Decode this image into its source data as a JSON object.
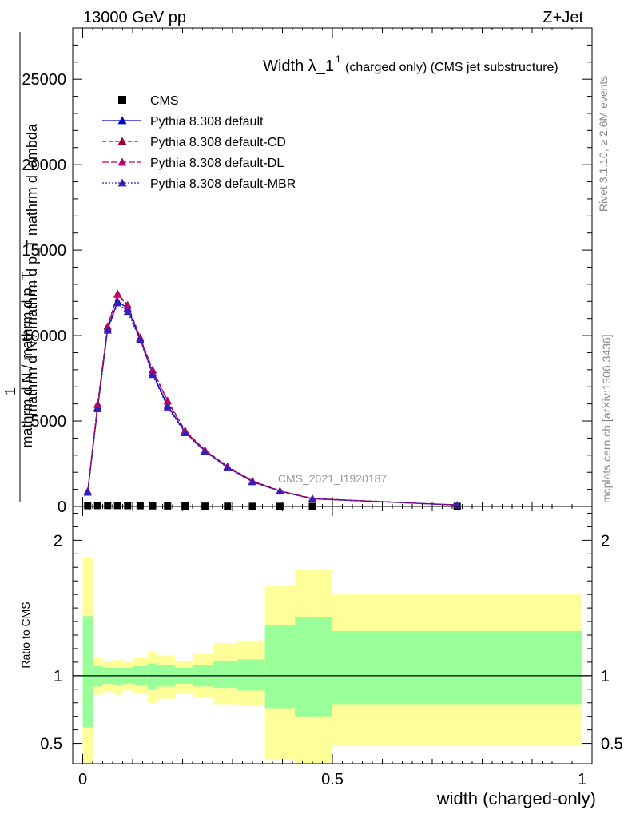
{
  "header": {
    "energy_label": "13000 GeV pp",
    "process_label": "Z+Jet"
  },
  "side_labels": {
    "rivet": "Rivet 3.1.10, ≥ 2.6M events",
    "mcplots": "mcplots.cern.ch [arXiv:1306.3436]"
  },
  "colors": {
    "cms": "#000000",
    "default": "#0000cc",
    "default_cd": "#a0003a",
    "default_dl": "#c0006a",
    "default_mbr": "#3020c0",
    "band_inner": "#99ff99",
    "band_outer": "#ffff99"
  },
  "chart_data": [
    {
      "type": "line",
      "title_main": "Width λ_1",
      "title_sup": "1",
      "title_rest": "(charged only) (CMS jet substructure)",
      "ylabel_lines": [
        "mathrm d N / mathrm d p_T mathrm d lambda",
        "mathrm d N / mathrm d p_T",
        "1"
      ],
      "watermark": "CMS_2021_I1920187",
      "xlim": [
        -0.02,
        1.02
      ],
      "ylim": [
        0,
        28000
      ],
      "yticks": [
        0,
        5000,
        10000,
        15000,
        20000,
        25000
      ],
      "ytick_labels": [
        "0",
        "5000",
        "10000",
        "15000",
        "20000",
        "25000"
      ],
      "legend_position": "top-left",
      "series": [
        {
          "name": "CMS",
          "style": "markers",
          "x": [
            0.01,
            0.03,
            0.05,
            0.07,
            0.09,
            0.115,
            0.14,
            0.17,
            0.205,
            0.245,
            0.29,
            0.34,
            0.395,
            0.46,
            0.75
          ],
          "y": [
            45,
            50,
            55,
            52,
            48,
            42,
            36,
            30,
            22,
            16,
            11,
            7,
            5,
            3,
            1
          ]
        },
        {
          "name": "Pythia 8.308 default",
          "style": "solid",
          "x": [
            0.01,
            0.03,
            0.05,
            0.07,
            0.09,
            0.115,
            0.14,
            0.17,
            0.205,
            0.245,
            0.29,
            0.34,
            0.395,
            0.46,
            0.75
          ],
          "y": [
            850,
            5800,
            10400,
            12000,
            11600,
            9800,
            7800,
            5900,
            4350,
            3250,
            2300,
            1450,
            900,
            450,
            80
          ]
        },
        {
          "name": "Pythia 8.308 default-CD",
          "style": "dashed",
          "x": [
            0.01,
            0.03,
            0.05,
            0.07,
            0.09,
            0.115,
            0.14,
            0.17,
            0.205,
            0.245,
            0.29,
            0.34,
            0.395,
            0.46,
            0.75
          ],
          "y": [
            900,
            6000,
            10550,
            12450,
            11800,
            9900,
            8000,
            6200,
            4450,
            3300,
            2350,
            1500,
            920,
            470,
            85
          ]
        },
        {
          "name": "Pythia 8.308 default-DL",
          "style": "dashed",
          "x": [
            0.01,
            0.03,
            0.05,
            0.07,
            0.09,
            0.115,
            0.14,
            0.17,
            0.205,
            0.245,
            0.29,
            0.34,
            0.395,
            0.46,
            0.75
          ],
          "y": [
            880,
            5950,
            10500,
            12400,
            11750,
            9850,
            7950,
            6150,
            4400,
            3280,
            2330,
            1480,
            910,
            460,
            82
          ]
        },
        {
          "name": "Pythia 8.308 default-MBR",
          "style": "dotted",
          "x": [
            0.01,
            0.03,
            0.05,
            0.07,
            0.09,
            0.115,
            0.14,
            0.17,
            0.205,
            0.245,
            0.29,
            0.34,
            0.395,
            0.46,
            0.75
          ],
          "y": [
            820,
            5700,
            10300,
            11900,
            11400,
            9750,
            7700,
            5800,
            4300,
            3200,
            2280,
            1430,
            880,
            440,
            78
          ]
        }
      ]
    },
    {
      "type": "area",
      "ylabel": "Ratio to CMS",
      "xlabel": "width (charged-only)",
      "xlim": [
        -0.02,
        1.02
      ],
      "ylim": [
        0.35,
        2.25
      ],
      "xticks": [
        0,
        0.5,
        1
      ],
      "xtick_labels": [
        "0",
        "0.5",
        "1"
      ],
      "yticks": [
        0.5,
        1,
        2
      ],
      "ytick_labels": [
        "0.5",
        "1",
        "2"
      ],
      "reference_line": 1,
      "bins": [
        {
          "x0": 0.0,
          "x1": 0.02,
          "inner": [
            0.62,
            1.44
          ],
          "outer": [
            0.35,
            1.87
          ]
        },
        {
          "x0": 0.02,
          "x1": 0.04,
          "inner": [
            0.92,
            1.07
          ],
          "outer": [
            0.86,
            1.13
          ]
        },
        {
          "x0": 0.04,
          "x1": 0.06,
          "inner": [
            0.94,
            1.06
          ],
          "outer": [
            0.88,
            1.11
          ]
        },
        {
          "x0": 0.06,
          "x1": 0.08,
          "inner": [
            0.93,
            1.06
          ],
          "outer": [
            0.86,
            1.12
          ]
        },
        {
          "x0": 0.08,
          "x1": 0.1,
          "inner": [
            0.94,
            1.06
          ],
          "outer": [
            0.89,
            1.11
          ]
        },
        {
          "x0": 0.1,
          "x1": 0.13,
          "inner": [
            0.93,
            1.07
          ],
          "outer": [
            0.87,
            1.13
          ]
        },
        {
          "x0": 0.13,
          "x1": 0.15,
          "inner": [
            0.9,
            1.09
          ],
          "outer": [
            0.8,
            1.18
          ]
        },
        {
          "x0": 0.15,
          "x1": 0.185,
          "inner": [
            0.92,
            1.08
          ],
          "outer": [
            0.83,
            1.15
          ]
        },
        {
          "x0": 0.185,
          "x1": 0.22,
          "inner": [
            0.94,
            1.06
          ],
          "outer": [
            0.87,
            1.11
          ]
        },
        {
          "x0": 0.22,
          "x1": 0.26,
          "inner": [
            0.92,
            1.08
          ],
          "outer": [
            0.84,
            1.16
          ]
        },
        {
          "x0": 0.26,
          "x1": 0.31,
          "inner": [
            0.91,
            1.11
          ],
          "outer": [
            0.79,
            1.24
          ]
        },
        {
          "x0": 0.31,
          "x1": 0.365,
          "inner": [
            0.89,
            1.12
          ],
          "outer": [
            0.78,
            1.26
          ]
        },
        {
          "x0": 0.365,
          "x1": 0.425,
          "inner": [
            0.76,
            1.37
          ],
          "outer": [
            0.38,
            1.66
          ]
        },
        {
          "x0": 0.425,
          "x1": 0.5,
          "inner": [
            0.7,
            1.43
          ],
          "outer": [
            0.35,
            1.78
          ]
        },
        {
          "x0": 0.5,
          "x1": 1.0,
          "inner": [
            0.79,
            1.33
          ],
          "outer": [
            0.49,
            1.6
          ]
        }
      ]
    }
  ]
}
